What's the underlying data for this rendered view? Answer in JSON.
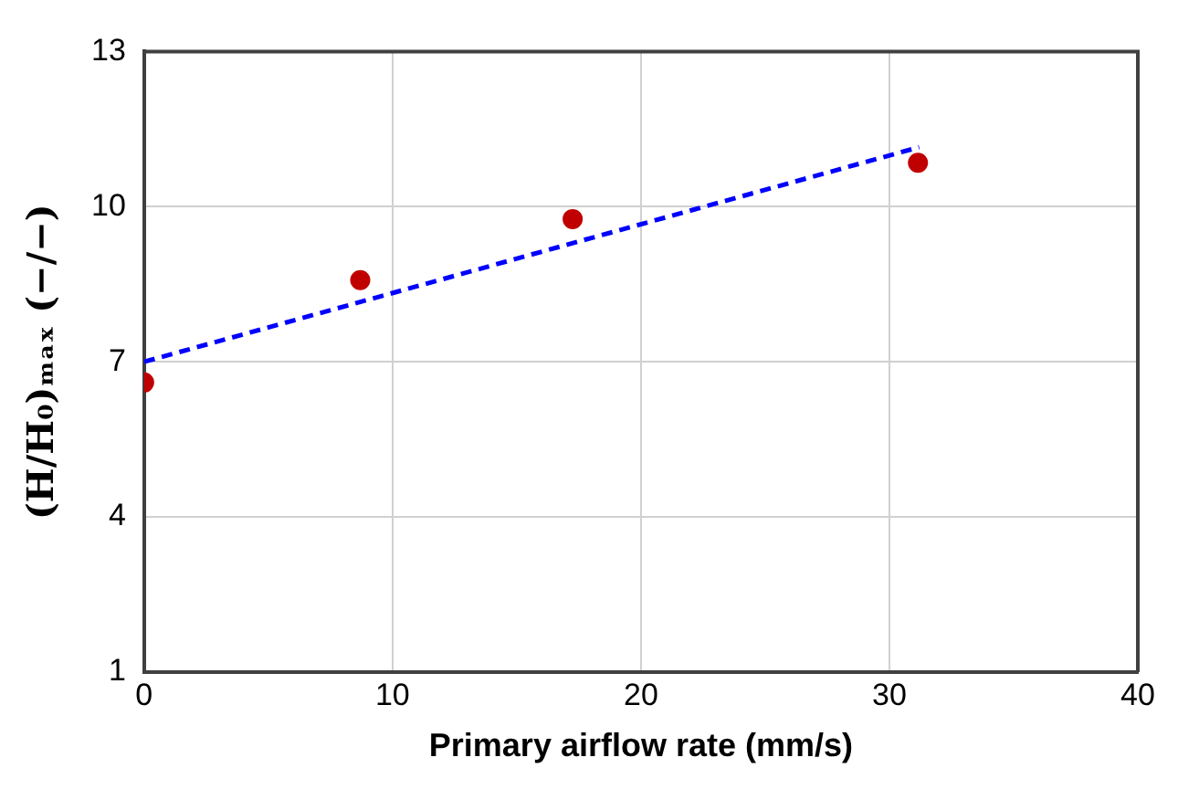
{
  "chart_data": {
    "type": "scatter",
    "xlabel": "Primary airflow rate (mm/s)",
    "ylabel": "(H/H₀)ₘₐₓ (−/−)",
    "x": [
      0,
      8.7,
      17.25,
      31.15
    ],
    "series": [
      {
        "type": "scatter",
        "color": "#c00000",
        "values": [
          6.6,
          8.58,
          9.76,
          10.85
        ],
        "marker": "circle"
      },
      {
        "type": "line",
        "color": "#0000ff",
        "x": [
          0,
          31.2
        ],
        "values": [
          7.0,
          11.15
        ],
        "line_style": "dashed",
        "marker": "none"
      }
    ],
    "xlim": [
      0,
      40
    ],
    "xticks": [
      0,
      10,
      20,
      30,
      40
    ],
    "ylim": [
      1,
      13
    ],
    "yticks": [
      1,
      4,
      7,
      10,
      13
    ],
    "grid": true,
    "legend": false
  }
}
